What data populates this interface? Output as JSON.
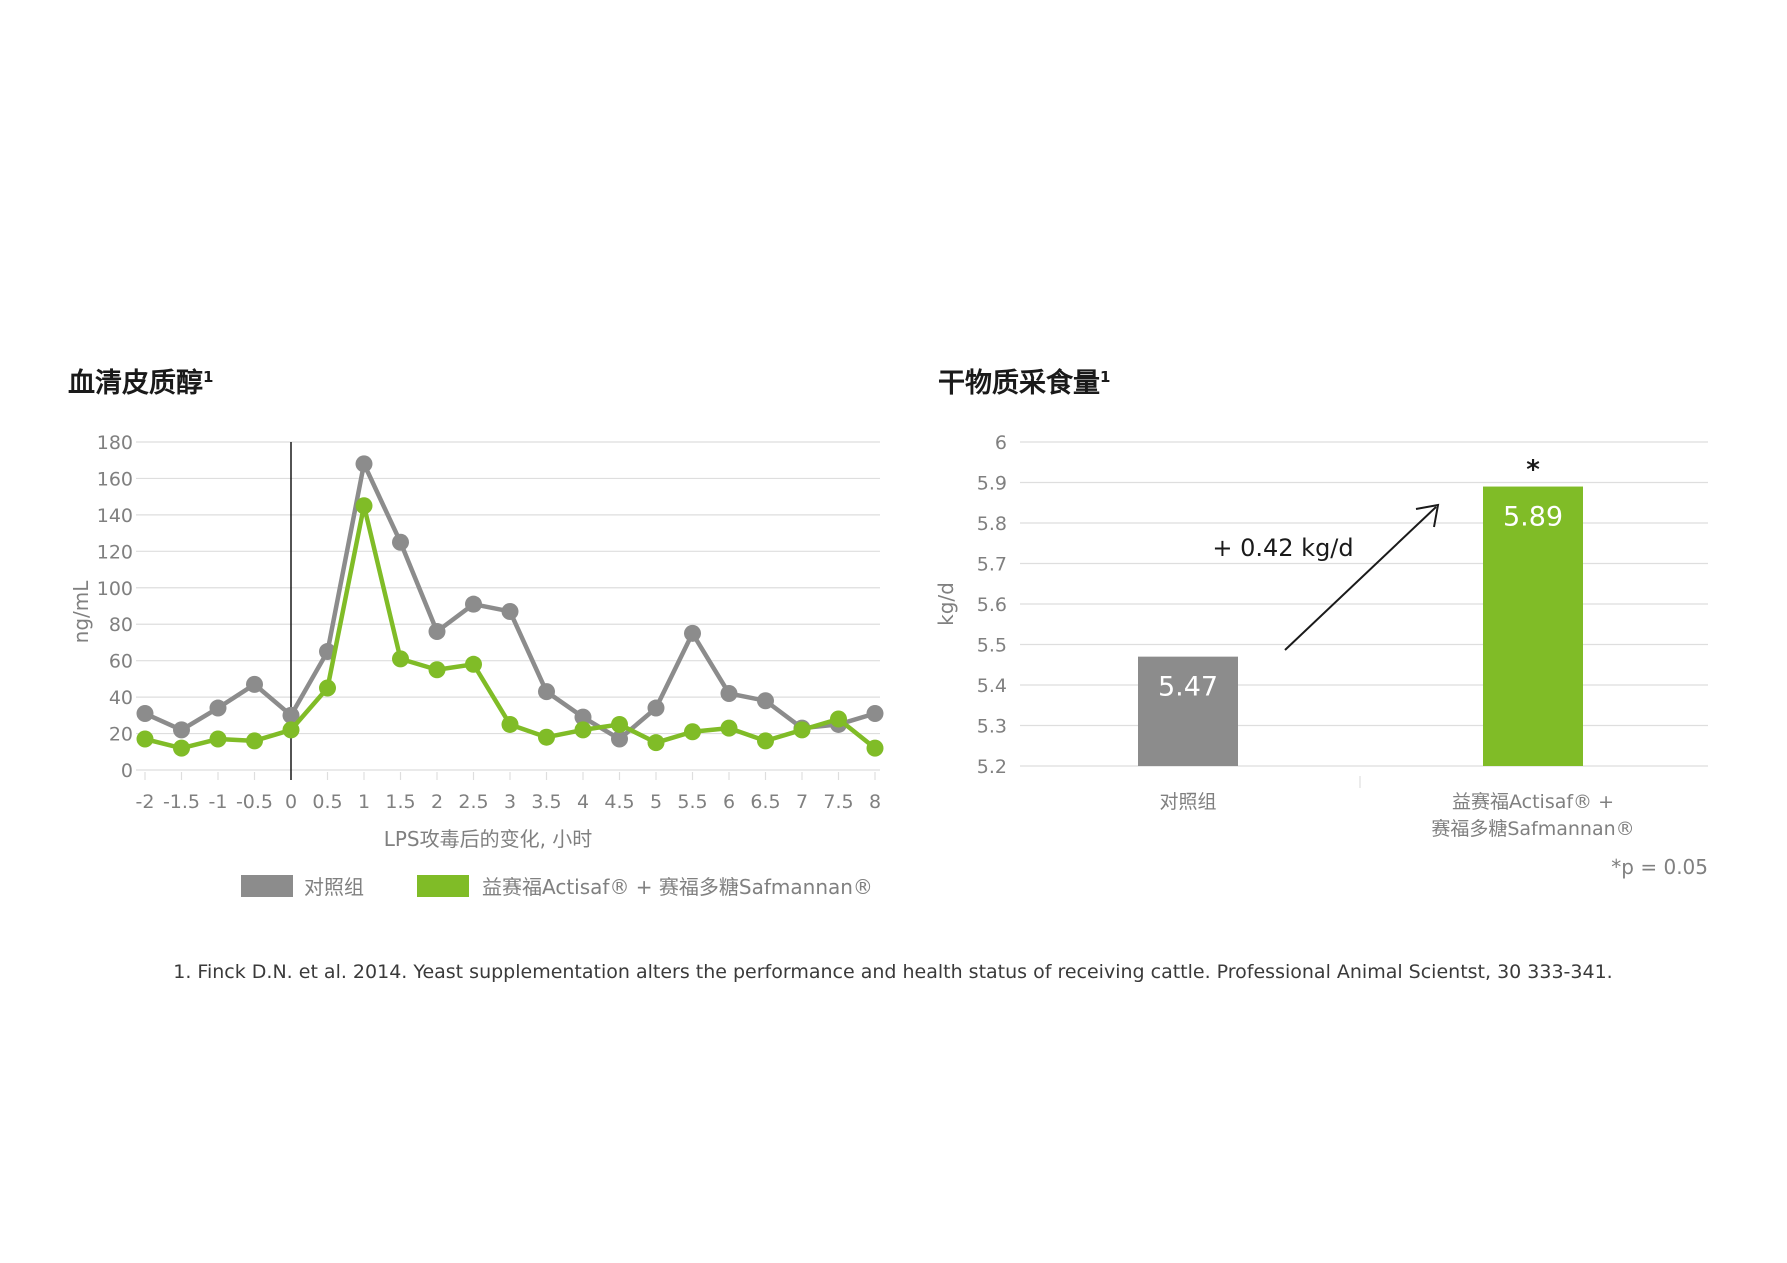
{
  "colors": {
    "control": "#8c8c8c",
    "treatment": "#80bc27",
    "grid": "#dedede",
    "title": "#1a1a1a",
    "text": "#808080"
  },
  "chart_data": [
    {
      "type": "line",
      "title": "血清皮质醇",
      "title_sup": "1",
      "xlabel": "LPS攻毒后的变化, 小时",
      "ylabel": "ng/mL",
      "ylim": [
        0,
        180
      ],
      "yticks": [
        0,
        20,
        40,
        60,
        80,
        100,
        120,
        140,
        160,
        180
      ],
      "xlim": [
        -2,
        8
      ],
      "xticks": [
        "-2",
        "-1.5",
        "-1",
        "-0.5",
        "0",
        "0.5",
        "1",
        "1.5",
        "2",
        "2.5",
        "3",
        "3.5",
        "4",
        "4.5",
        "5",
        "5.5",
        "6",
        "6.5",
        "7",
        "7.5",
        "8"
      ],
      "x": [
        -2,
        -1.5,
        -1,
        -0.5,
        0,
        0.5,
        1,
        1.5,
        2,
        2.5,
        3,
        3.5,
        4,
        4.5,
        5,
        5.5,
        6,
        6.5,
        7,
        7.5,
        8
      ],
      "vertical_line_x": 0,
      "grid": "horizontal",
      "legend_position": "bottom",
      "series": [
        {
          "name": "对照组",
          "color": "#8c8c8c",
          "values": [
            31,
            22,
            34,
            47,
            30,
            65,
            168,
            125,
            76,
            91,
            87,
            43,
            29,
            17,
            34,
            75,
            42,
            38,
            23,
            25,
            31
          ]
        },
        {
          "name": "益赛福Actisaf® + 赛福多糖Safmannan®",
          "color": "#80bc27",
          "values": [
            17,
            12,
            17,
            16,
            22,
            45,
            145,
            61,
            55,
            58,
            25,
            18,
            22,
            25,
            15,
            21,
            23,
            16,
            22,
            28,
            12
          ]
        }
      ]
    },
    {
      "type": "bar",
      "title": "干物质采食量",
      "title_sup": "1",
      "ylabel": "kg/d",
      "ylim": [
        5.2,
        6
      ],
      "yticks": [
        "5.2",
        "5.3",
        "5.4",
        "5.5",
        "5.6",
        "5.7",
        "5.8",
        "5.9",
        "6"
      ],
      "grid": "horizontal",
      "categories": [
        {
          "lines": [
            "对照组"
          ],
          "value": 5.47,
          "label": "5.47",
          "color": "#8c8c8c"
        },
        {
          "lines": [
            "益赛福Actisaf® +",
            "赛福多糖Safmannan®"
          ],
          "value": 5.89,
          "label": "5.89",
          "color": "#80bc27"
        }
      ],
      "annotations": {
        "difference": "+ 0.42 kg/d",
        "significance_marker": "*",
        "significance_note": "*p = 0.05"
      }
    }
  ],
  "footnote": "1. Finck  D.N. et al. 2014. Yeast supplementation alters the performance and health status of receiving cattle. Professional Animal Scientst, 30 333-341."
}
